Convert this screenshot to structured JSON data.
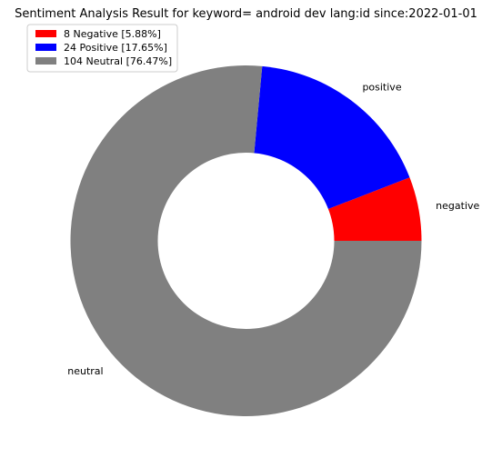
{
  "chart_data": {
    "type": "pie",
    "donut": true,
    "title": "Sentiment Analysis Result for keyword= android dev lang:id since:2022-01-01",
    "legend_position": "top-left",
    "slices": [
      {
        "label": "negative",
        "value": 8,
        "percent": 5.88,
        "color": "#ff0000",
        "legend": "8 Negative [5.88%]"
      },
      {
        "label": "positive",
        "value": 24,
        "percent": 17.65,
        "color": "#0000ff",
        "legend": "24 Positive [17.65%]"
      },
      {
        "label": "neutral",
        "value": 104,
        "percent": 76.47,
        "color": "#808080",
        "legend": "104 Neutral [76.47%]"
      }
    ]
  }
}
